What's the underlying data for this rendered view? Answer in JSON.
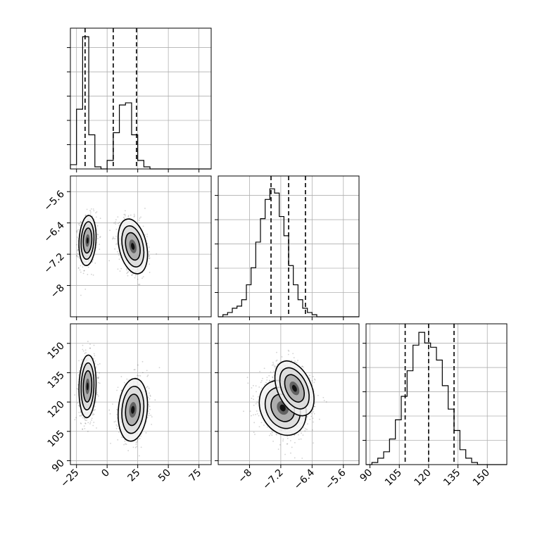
{
  "chart_data": {
    "type": "corner",
    "parameters": [
      {
        "range": [
          -30,
          85
        ],
        "ticks": [
          -25,
          0,
          25,
          50,
          75
        ],
        "quantiles": [
          -18,
          5,
          24
        ]
      },
      {
        "range": [
          -8.8,
          -5.2
        ],
        "ticks": [
          -8.0,
          -7.2,
          -6.4,
          -5.6
        ],
        "quantiles": [
          -7.45,
          -7.0,
          -6.57
        ]
      },
      {
        "range": [
          88,
          160
        ],
        "ticks": [
          90,
          105,
          120,
          135,
          150
        ],
        "quantiles": [
          108,
          120,
          133
        ]
      }
    ],
    "histograms": [
      {
        "param": 0,
        "bins_start": -30,
        "bin_width": 5,
        "counts": [
          2,
          28,
          62,
          16,
          1,
          0,
          4,
          17,
          30,
          31,
          16,
          4,
          1,
          0,
          0,
          0,
          0,
          0,
          0,
          0,
          0,
          0,
          0
        ],
        "ymax": 66
      },
      {
        "param": 1,
        "bins_start": -8.8,
        "bin_width": 0.12,
        "counts": [
          0,
          1,
          2,
          4,
          5,
          8,
          15,
          23,
          35,
          46,
          55,
          60,
          58,
          47,
          38,
          24,
          15,
          8,
          4,
          2,
          1,
          0,
          0,
          0,
          0,
          0,
          0,
          0,
          0,
          0
        ],
        "ymax": 66
      },
      {
        "param": 2,
        "bins_start": 88,
        "bin_width": 3,
        "counts": [
          0,
          1,
          3,
          6,
          12,
          21,
          32,
          44,
          56,
          62,
          57,
          55,
          49,
          37,
          26,
          16,
          7,
          3,
          1,
          0,
          0,
          0,
          0,
          0
        ],
        "ymax": 66
      }
    ],
    "clusters_2d": [
      {
        "px": 0,
        "py": 1,
        "modes": [
          {
            "cx": -16,
            "cy": -6.85,
            "sx": 3.5,
            "sy": 0.32,
            "rho": 0.15,
            "w": 0.55
          },
          {
            "cx": 21,
            "cy": -7.0,
            "sx": 6.0,
            "sy": 0.35,
            "rho": -0.3,
            "w": 0.45
          }
        ]
      },
      {
        "px": 0,
        "py": 2,
        "modes": [
          {
            "cx": -16,
            "cy": 128,
            "sx": 3.5,
            "sy": 8,
            "rho": 0.1,
            "w": 0.55
          },
          {
            "cx": 21,
            "cy": 116,
            "sx": 6.0,
            "sy": 8,
            "rho": 0.15,
            "w": 0.45
          }
        ]
      },
      {
        "px": 1,
        "py": 2,
        "modes": [
          {
            "cx": -7.15,
            "cy": 117,
            "sx": 0.3,
            "sy": 7,
            "rho": -0.2,
            "w": 0.5
          },
          {
            "cx": -6.85,
            "cy": 127,
            "sx": 0.25,
            "sy": 7,
            "rho": -0.4,
            "w": 0.5
          }
        ]
      }
    ],
    "xlabel": "",
    "ylabel": "",
    "grid": true
  }
}
